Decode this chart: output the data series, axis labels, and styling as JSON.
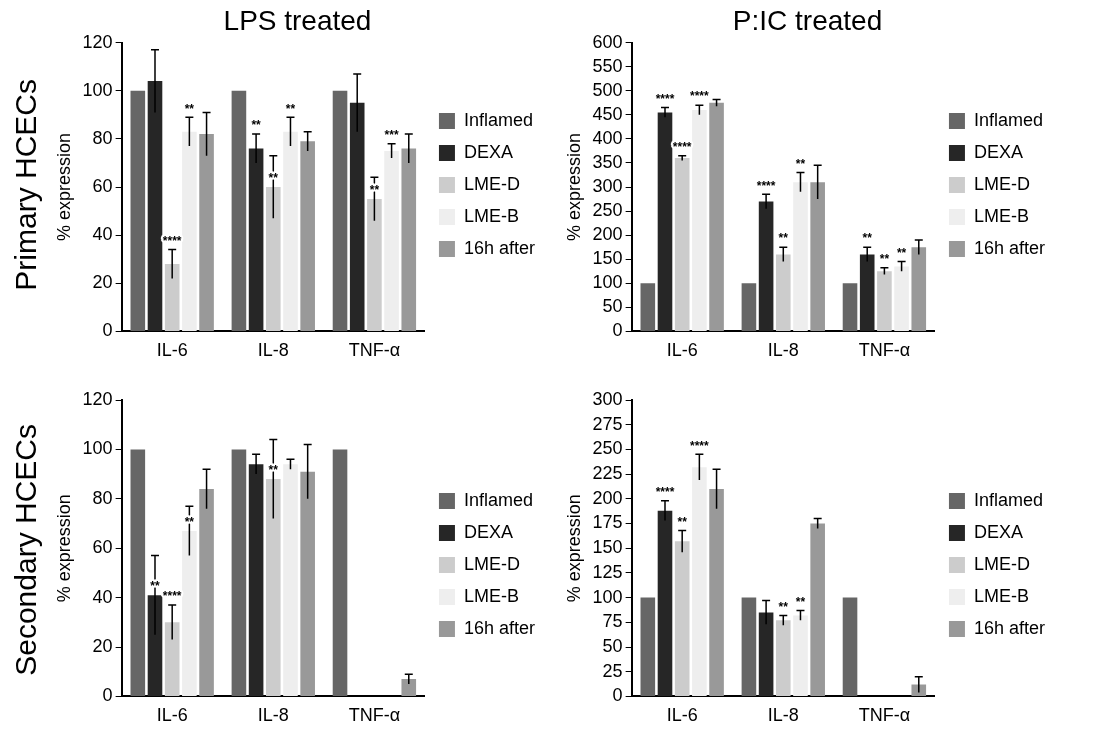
{
  "chart_data": [
    {
      "type": "bar",
      "title": "LPS treated",
      "ylabel": "% expression",
      "annotations": [
        "Primary HCECs"
      ],
      "categories": [
        "IL-6",
        "IL-8",
        "TNF-α"
      ],
      "ylim": [
        0,
        120
      ],
      "yticks": [
        0,
        20,
        40,
        60,
        80,
        100,
        120
      ],
      "legend": "right",
      "grid": false,
      "series": [
        {
          "name": "Inflamed",
          "color": "#666666",
          "values": [
            100,
            100,
            100
          ]
        },
        {
          "name": "DEXA",
          "color": "#262626",
          "values": [
            104,
            76,
            95
          ],
          "errors": [
            13,
            6,
            12
          ],
          "value_labels": [
            null,
            "**",
            null
          ]
        },
        {
          "name": "LME-D",
          "color": "#cccccc",
          "values": [
            28,
            60,
            55
          ],
          "errors": [
            6,
            13,
            9
          ],
          "value_labels": [
            "****",
            "**",
            "**"
          ]
        },
        {
          "name": "LME-B",
          "color": "#eeeeee",
          "values": [
            83,
            83,
            75
          ],
          "errors": [
            6,
            6,
            3
          ],
          "value_labels": [
            "**",
            "**",
            "***"
          ]
        },
        {
          "name": "16h after",
          "color": "#999999",
          "values": [
            82,
            79,
            76
          ],
          "errors": [
            9,
            4,
            6
          ]
        }
      ]
    },
    {
      "type": "bar",
      "title": "P:IC treated",
      "ylabel": "% expression",
      "categories": [
        "IL-6",
        "IL-8",
        "TNF-α"
      ],
      "ylim": [
        0,
        600
      ],
      "yticks": [
        0,
        50,
        100,
        150,
        200,
        250,
        300,
        350,
        400,
        450,
        500,
        550,
        600
      ],
      "legend": "right",
      "grid": false,
      "series": [
        {
          "name": "Inflamed",
          "color": "#666666",
          "values": [
            100,
            100,
            100
          ]
        },
        {
          "name": "DEXA",
          "color": "#262626",
          "values": [
            455,
            270,
            160
          ],
          "errors": [
            10,
            15,
            15
          ],
          "value_labels": [
            "****",
            "****",
            "**"
          ]
        },
        {
          "name": "LME-D",
          "color": "#cccccc",
          "values": [
            360,
            160,
            125
          ],
          "errors": [
            5,
            15,
            7
          ],
          "value_labels": [
            "****",
            "**",
            "**"
          ]
        },
        {
          "name": "LME-B",
          "color": "#eeeeee",
          "values": [
            460,
            310,
            135
          ],
          "errors": [
            10,
            20,
            10
          ],
          "value_labels": [
            "****",
            "**",
            "**"
          ]
        },
        {
          "name": "16h after",
          "color": "#999999",
          "values": [
            475,
            310,
            175
          ],
          "errors": [
            7,
            35,
            15
          ]
        }
      ]
    },
    {
      "type": "bar",
      "ylabel": "% expression",
      "annotations": [
        "Secondary HCECs"
      ],
      "categories": [
        "IL-6",
        "IL-8",
        "TNF-α"
      ],
      "ylim": [
        0,
        120
      ],
      "yticks": [
        0,
        20,
        40,
        60,
        80,
        100,
        120
      ],
      "legend": "right",
      "grid": false,
      "series": [
        {
          "name": "Inflamed",
          "color": "#666666",
          "values": [
            100,
            100,
            100
          ]
        },
        {
          "name": "DEXA",
          "color": "#262626",
          "values": [
            41,
            94,
            null
          ],
          "errors": [
            16,
            4,
            null
          ],
          "value_labels": [
            "**",
            null,
            null
          ]
        },
        {
          "name": "LME-D",
          "color": "#cccccc",
          "values": [
            30,
            88,
            null
          ],
          "errors": [
            7,
            16,
            null
          ],
          "value_labels": [
            "****",
            "**",
            null
          ]
        },
        {
          "name": "LME-B",
          "color": "#eeeeee",
          "values": [
            67,
            94,
            null
          ],
          "errors": [
            10,
            2,
            null
          ],
          "value_labels": [
            "**",
            null,
            null
          ]
        },
        {
          "name": "16h after",
          "color": "#999999",
          "values": [
            84,
            91,
            7
          ],
          "errors": [
            8,
            11,
            2
          ]
        }
      ]
    },
    {
      "type": "bar",
      "ylabel": "% expression",
      "categories": [
        "IL-6",
        "IL-8",
        "TNF-α"
      ],
      "ylim": [
        0,
        300
      ],
      "yticks": [
        0,
        25,
        50,
        75,
        100,
        125,
        150,
        175,
        200,
        225,
        250,
        275,
        300
      ],
      "legend": "right",
      "grid": false,
      "series": [
        {
          "name": "Inflamed",
          "color": "#666666",
          "values": [
            100,
            100,
            100
          ]
        },
        {
          "name": "DEXA",
          "color": "#262626",
          "values": [
            188,
            85,
            null
          ],
          "errors": [
            10,
            12,
            null
          ],
          "value_labels": [
            "****",
            null,
            null
          ]
        },
        {
          "name": "LME-D",
          "color": "#cccccc",
          "values": [
            157,
            77,
            null
          ],
          "errors": [
            11,
            5,
            null
          ],
          "value_labels": [
            "**",
            "**",
            null
          ]
        },
        {
          "name": "LME-B",
          "color": "#eeeeee",
          "values": [
            232,
            82,
            null
          ],
          "errors": [
            13,
            5,
            null
          ],
          "value_labels": [
            "****",
            "**",
            null
          ]
        },
        {
          "name": "16h after",
          "color": "#999999",
          "values": [
            210,
            175,
            12
          ],
          "errors": [
            20,
            5,
            8
          ]
        }
      ]
    }
  ]
}
